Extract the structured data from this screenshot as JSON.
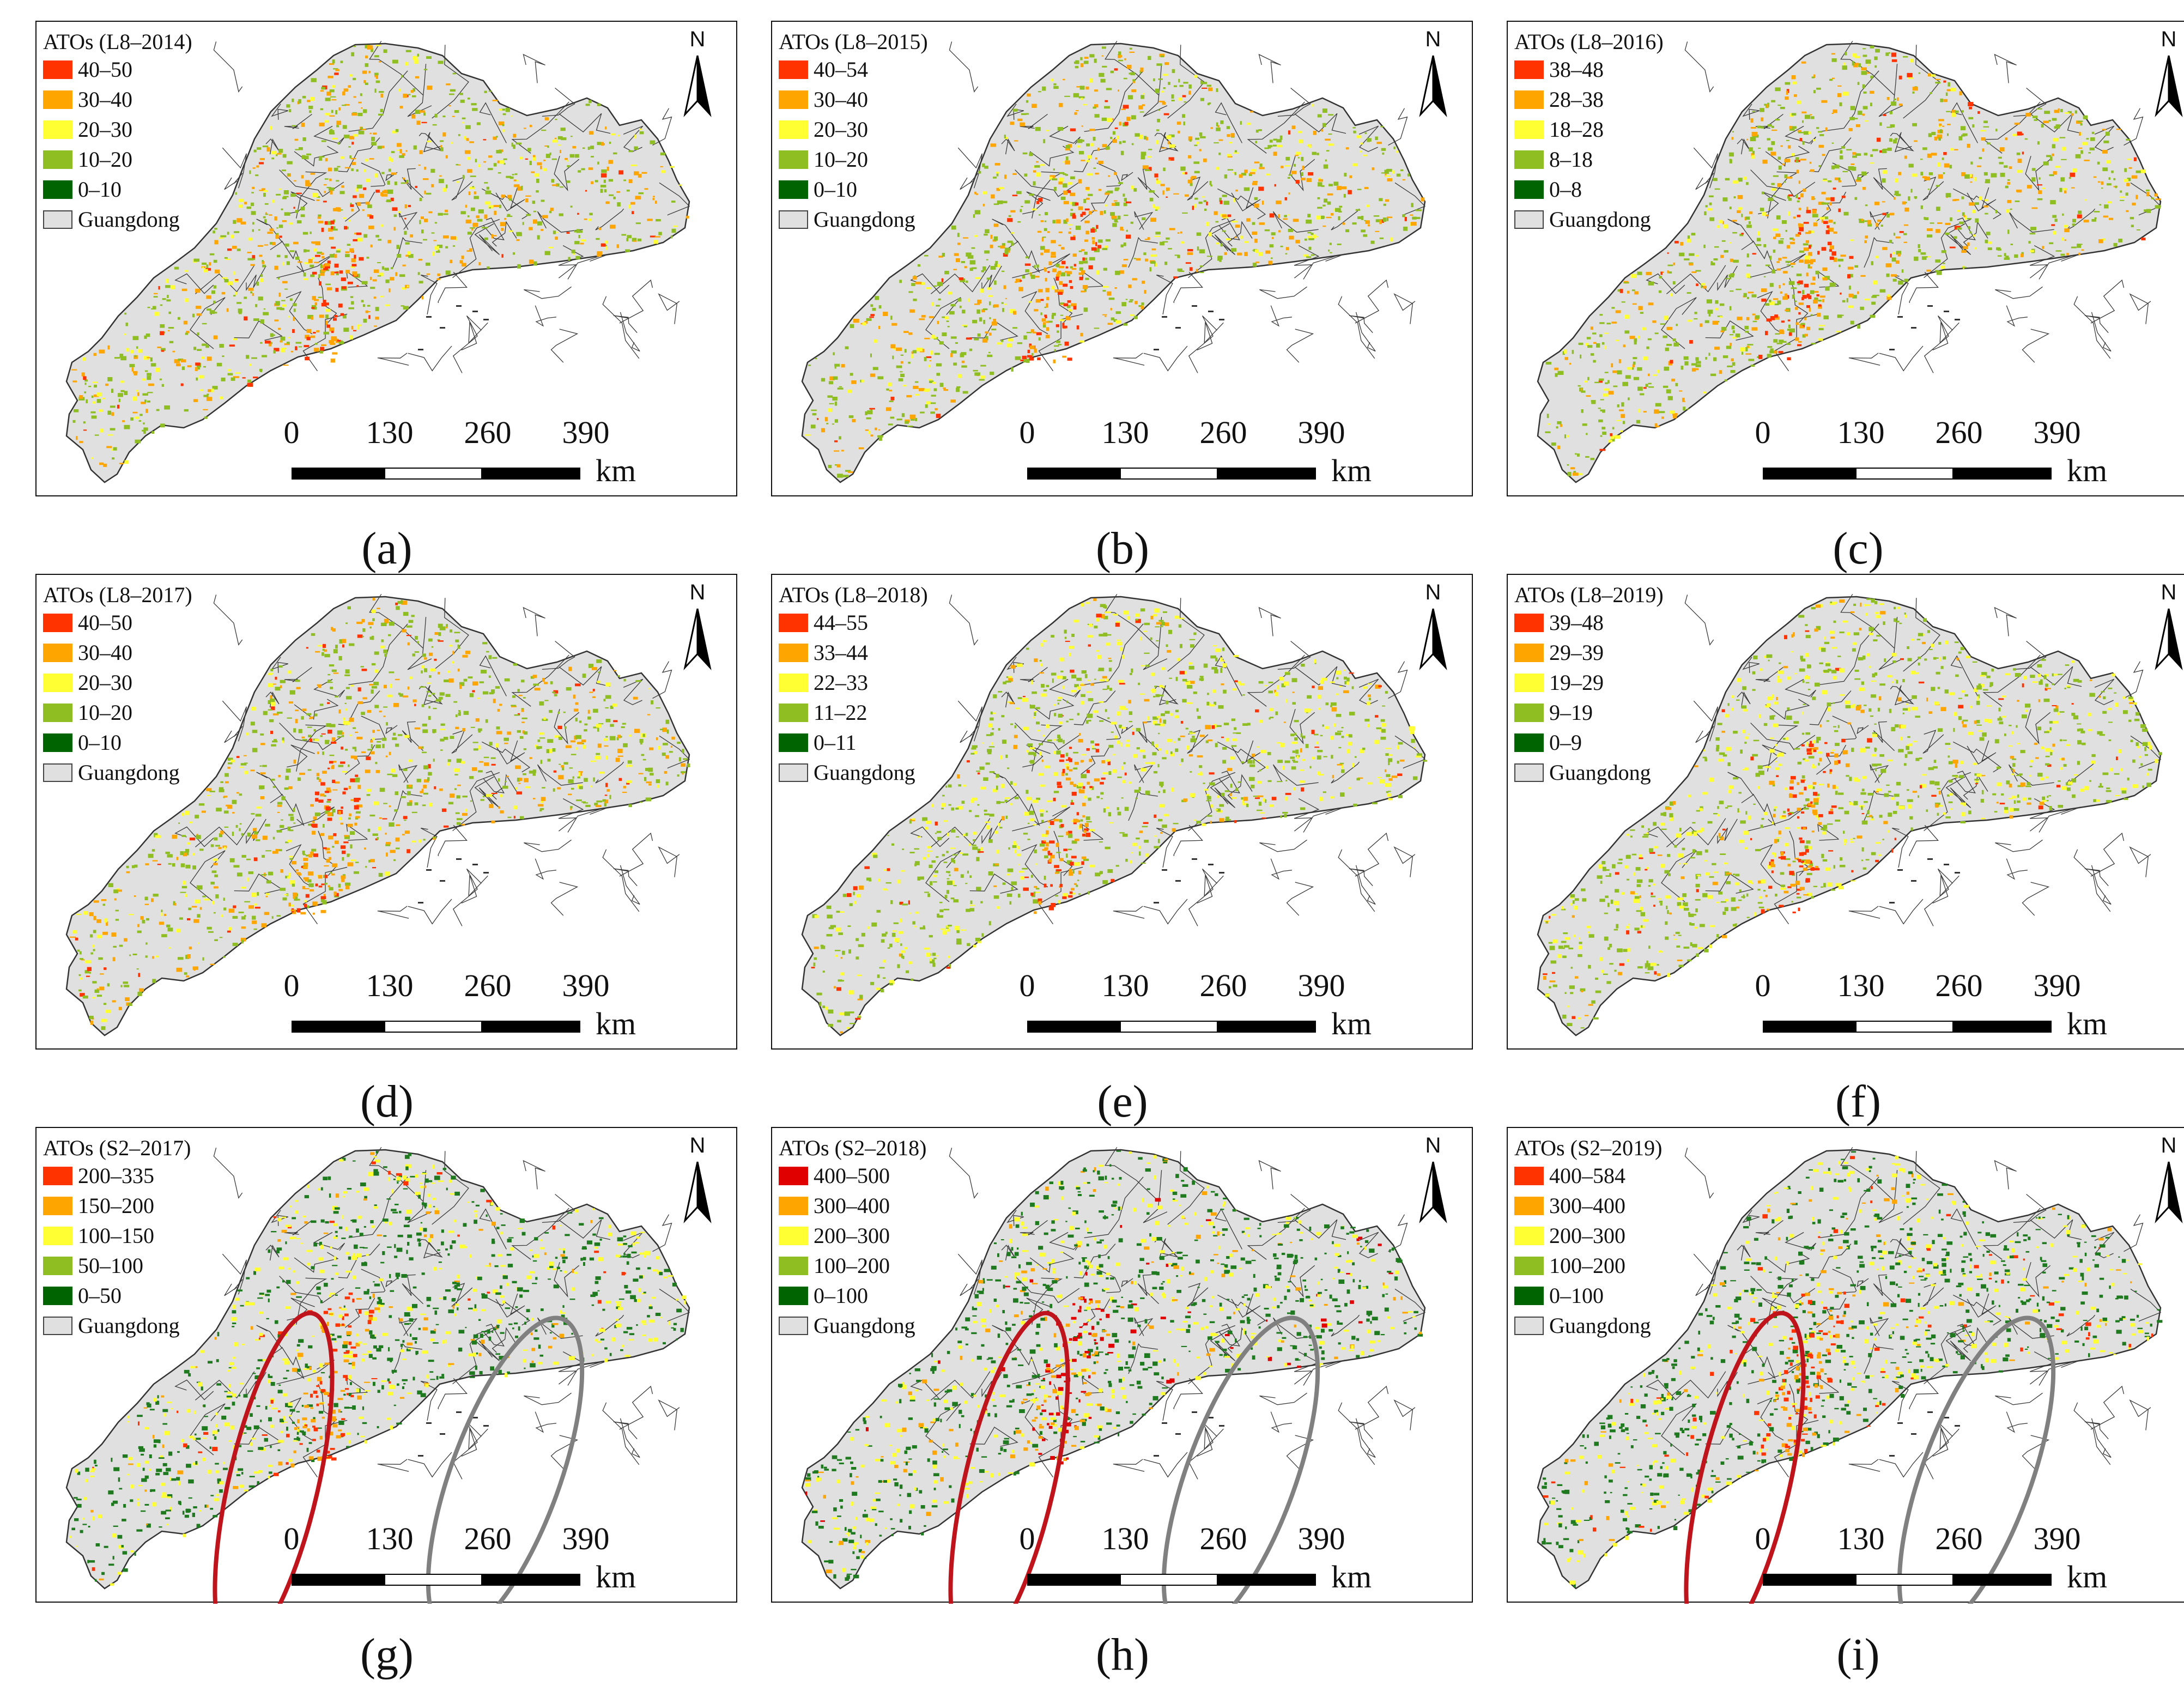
{
  "figure": {
    "panels": [
      {
        "caption": "(a)",
        "title": "ATOs (L8–2014)",
        "legend": [
          {
            "label": "40–50",
            "color": "#ff3300"
          },
          {
            "label": "30–40",
            "color": "#ffa500"
          },
          {
            "label": "20–30",
            "color": "#ffff33"
          },
          {
            "label": "10–20",
            "color": "#8fbe23"
          },
          {
            "label": "0–10",
            "color": "#006400"
          },
          {
            "label": "Guangdong",
            "color": "#e0e0e0"
          }
        ],
        "map_palette": {
          "dominant": "#8fbe23",
          "secondary": "#ffa500"
        }
      },
      {
        "caption": "(b)",
        "title": "ATOs (L8–2015)",
        "legend": [
          {
            "label": "40–54",
            "color": "#ff3300"
          },
          {
            "label": "30–40",
            "color": "#ffa500"
          },
          {
            "label": "20–30",
            "color": "#ffff33"
          },
          {
            "label": "10–20",
            "color": "#8fbe23"
          },
          {
            "label": "0–10",
            "color": "#006400"
          },
          {
            "label": "Guangdong",
            "color": "#e0e0e0"
          }
        ],
        "map_palette": {
          "dominant": "#8fbe23",
          "secondary": "#ffa500"
        }
      },
      {
        "caption": "(c)",
        "title": "ATOs (L8–2016)",
        "legend": [
          {
            "label": "38–48",
            "color": "#ff3300"
          },
          {
            "label": "28–38",
            "color": "#ffa500"
          },
          {
            "label": "18–28",
            "color": "#ffff33"
          },
          {
            "label": "8–18",
            "color": "#8fbe23"
          },
          {
            "label": "0–8",
            "color": "#006400"
          },
          {
            "label": "Guangdong",
            "color": "#e0e0e0"
          }
        ],
        "map_palette": {
          "dominant": "#8fbe23",
          "secondary": "#ffa500"
        }
      },
      {
        "caption": "(d)",
        "title": "ATOs (L8–2017)",
        "legend": [
          {
            "label": "40–50",
            "color": "#ff3300"
          },
          {
            "label": "30–40",
            "color": "#ffa500"
          },
          {
            "label": "20–30",
            "color": "#ffff33"
          },
          {
            "label": "10–20",
            "color": "#8fbe23"
          },
          {
            "label": "0–10",
            "color": "#006400"
          },
          {
            "label": "Guangdong",
            "color": "#e0e0e0"
          }
        ],
        "map_palette": {
          "dominant": "#8fbe23",
          "secondary": "#ffa500"
        }
      },
      {
        "caption": "(e)",
        "title": "ATOs (L8–2018)",
        "legend": [
          {
            "label": "44–55",
            "color": "#ff3300"
          },
          {
            "label": "33–44",
            "color": "#ffa500"
          },
          {
            "label": "22–33",
            "color": "#ffff33"
          },
          {
            "label": "11–22",
            "color": "#8fbe23"
          },
          {
            "label": "0–11",
            "color": "#006400"
          },
          {
            "label": "Guangdong",
            "color": "#e0e0e0"
          }
        ],
        "map_palette": {
          "dominant": "#8fbe23",
          "secondary": "#ffff33"
        }
      },
      {
        "caption": "(f)",
        "title": "ATOs (L8–2019)",
        "legend": [
          {
            "label": "39–48",
            "color": "#ff3300"
          },
          {
            "label": "29–39",
            "color": "#ffa500"
          },
          {
            "label": "19–29",
            "color": "#ffff33"
          },
          {
            "label": "9–19",
            "color": "#8fbe23"
          },
          {
            "label": "0–9",
            "color": "#006400"
          },
          {
            "label": "Guangdong",
            "color": "#e0e0e0"
          }
        ],
        "map_palette": {
          "dominant": "#8fbe23",
          "secondary": "#ffff33"
        }
      },
      {
        "caption": "(g)",
        "title": "ATOs (S2–2017)",
        "legend": [
          {
            "label": "200–335",
            "color": "#ff3300"
          },
          {
            "label": "150–200",
            "color": "#ffa500"
          },
          {
            "label": "100–150",
            "color": "#ffff33"
          },
          {
            "label": "50–100",
            "color": "#8fbe23"
          },
          {
            "label": "0–50",
            "color": "#006400"
          },
          {
            "label": "Guangdong",
            "color": "#e0e0e0"
          }
        ],
        "map_palette": {
          "dominant": "#1f7a1f",
          "secondary": "#ffff33"
        },
        "highlights": [
          {
            "color": "#c0141c"
          },
          {
            "color": "#808080"
          }
        ]
      },
      {
        "caption": "(h)",
        "title": "ATOs (S2–2018)",
        "legend": [
          {
            "label": "400–500",
            "color": "#e00000"
          },
          {
            "label": "300–400",
            "color": "#ffa500"
          },
          {
            "label": "200–300",
            "color": "#ffff33"
          },
          {
            "label": "100–200",
            "color": "#8fbe23"
          },
          {
            "label": "0–100",
            "color": "#006400"
          },
          {
            "label": "Guangdong",
            "color": "#e0e0e0"
          }
        ],
        "map_palette": {
          "dominant": "#1f7a1f",
          "secondary": "#ffff33"
        },
        "highlights": [
          {
            "color": "#c0141c"
          },
          {
            "color": "#808080"
          }
        ]
      },
      {
        "caption": "(i)",
        "title": "ATOs (S2–2019)",
        "legend": [
          {
            "label": "400–584",
            "color": "#ff3300"
          },
          {
            "label": "300–400",
            "color": "#ffa500"
          },
          {
            "label": "200–300",
            "color": "#ffff33"
          },
          {
            "label": "100–200",
            "color": "#8fbe23"
          },
          {
            "label": "0–100",
            "color": "#006400"
          },
          {
            "label": "Guangdong",
            "color": "#e0e0e0"
          }
        ],
        "map_palette": {
          "dominant": "#1f7a1f",
          "secondary": "#ffff33"
        },
        "highlights": [
          {
            "color": "#c0141c"
          },
          {
            "color": "#808080"
          }
        ]
      }
    ],
    "north_arrow_label": "N",
    "scale_ticks": [
      "0",
      "130",
      "260",
      "390"
    ],
    "scale_unit": "km",
    "icons": [
      "north-arrow-icon",
      "scale-bar-icon"
    ]
  }
}
